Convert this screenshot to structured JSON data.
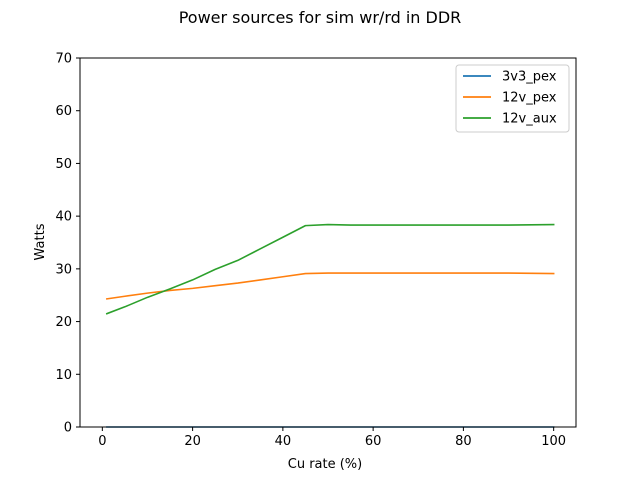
{
  "chart_data": {
    "type": "line",
    "title": "Power sources for sim wr/rd  in DDR",
    "xlabel": "Cu rate (%)",
    "ylabel": "Watts",
    "xlim": [
      -4.95,
      104.95
    ],
    "ylim": [
      0,
      70
    ],
    "xticks": [
      0,
      20,
      40,
      60,
      80,
      100
    ],
    "yticks": [
      0,
      10,
      20,
      30,
      40,
      50,
      60,
      70
    ],
    "grid": false,
    "legend_position": "upper right",
    "series": [
      {
        "name": "3v3_pex",
        "color": "#1f77b4",
        "x": [
          1,
          100
        ],
        "y": [
          0.0,
          0.0
        ]
      },
      {
        "name": "12v_pex",
        "color": "#ff7f0e",
        "x": [
          1,
          5,
          10,
          15,
          20,
          25,
          30,
          35,
          40,
          45,
          50,
          55,
          60,
          70,
          80,
          90,
          100
        ],
        "y": [
          24.3,
          24.8,
          25.4,
          25.9,
          26.3,
          26.8,
          27.3,
          27.9,
          28.5,
          29.1,
          29.2,
          29.2,
          29.2,
          29.2,
          29.2,
          29.2,
          29.1
        ]
      },
      {
        "name": "12v_aux",
        "color": "#2ca02c",
        "x": [
          1,
          5,
          10,
          15,
          20,
          25,
          30,
          35,
          40,
          45,
          50,
          55,
          60,
          70,
          80,
          90,
          100
        ],
        "y": [
          21.5,
          22.8,
          24.6,
          26.2,
          27.9,
          29.9,
          31.6,
          33.8,
          36.0,
          38.2,
          38.4,
          38.3,
          38.3,
          38.3,
          38.3,
          38.3,
          38.4
        ]
      }
    ]
  }
}
